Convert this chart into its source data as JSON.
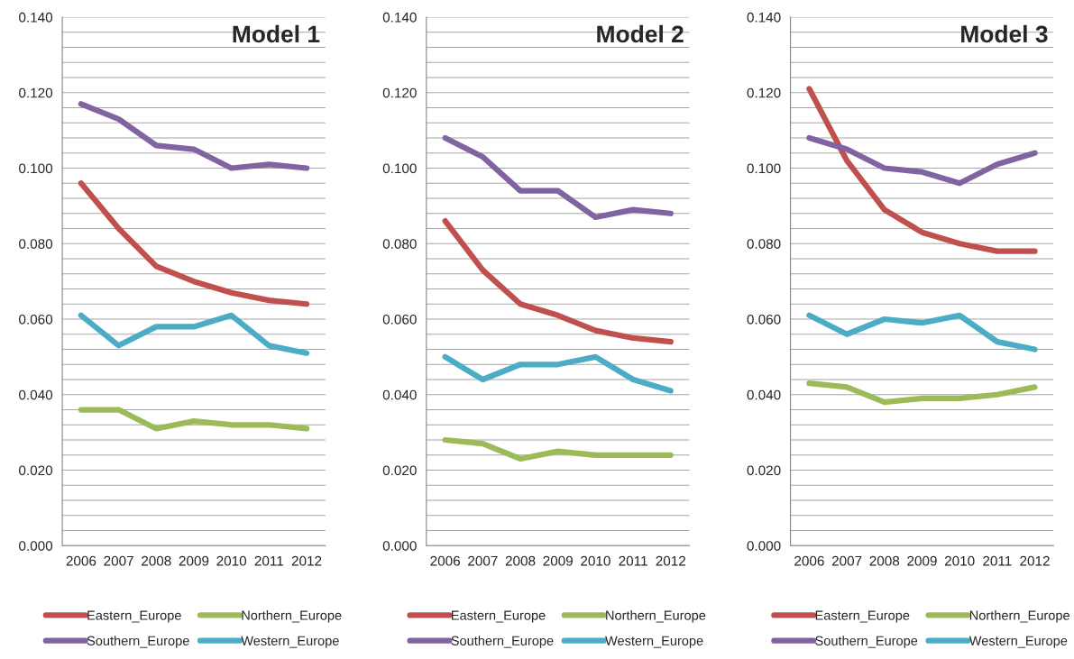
{
  "chart_data": [
    {
      "type": "line",
      "title": "Model 1",
      "categories": [
        "2006",
        "2007",
        "2008",
        "2009",
        "2010",
        "2011",
        "2012"
      ],
      "ylim": [
        0,
        0.14
      ],
      "yticks": [
        {
          "value": 0,
          "label": "0.000"
        },
        {
          "value": 0.004,
          "label": null
        },
        {
          "value": 0.008,
          "label": null
        },
        {
          "value": 0.012,
          "label": null
        },
        {
          "value": 0.016,
          "label": null
        },
        {
          "value": 0.02,
          "label": "0.020"
        },
        {
          "value": 0.024,
          "label": null
        },
        {
          "value": 0.028,
          "label": null
        },
        {
          "value": 0.032,
          "label": null
        },
        {
          "value": 0.036,
          "label": null
        },
        {
          "value": 0.04,
          "label": "0.040"
        },
        {
          "value": 0.044,
          "label": null
        },
        {
          "value": 0.048,
          "label": null
        },
        {
          "value": 0.052,
          "label": null
        },
        {
          "value": 0.056,
          "label": null
        },
        {
          "value": 0.06,
          "label": "0.060"
        },
        {
          "value": 0.064,
          "label": null
        },
        {
          "value": 0.068,
          "label": null
        },
        {
          "value": 0.072,
          "label": null
        },
        {
          "value": 0.076,
          "label": null
        },
        {
          "value": 0.08,
          "label": "0.080"
        },
        {
          "value": 0.084,
          "label": null
        },
        {
          "value": 0.088,
          "label": null
        },
        {
          "value": 0.092,
          "label": null
        },
        {
          "value": 0.096,
          "label": null
        },
        {
          "value": 0.1,
          "label": "0.100"
        },
        {
          "value": 0.104,
          "label": null
        },
        {
          "value": 0.108,
          "label": null
        },
        {
          "value": 0.112,
          "label": null
        },
        {
          "value": 0.116,
          "label": null
        },
        {
          "value": 0.12,
          "label": "0.120"
        },
        {
          "value": 0.124,
          "label": null
        },
        {
          "value": 0.128,
          "label": null
        },
        {
          "value": 0.132,
          "label": null
        },
        {
          "value": 0.136,
          "label": null
        },
        {
          "value": 0.14,
          "label": "0.140"
        }
      ],
      "grid": "y",
      "legend": "bottom",
      "marker": "none",
      "line_style": "solid",
      "series": [
        {
          "name": "Eastern_Europe",
          "color": "#c0504d",
          "values": [
            0.096,
            0.084,
            0.074,
            0.07,
            0.067,
            0.065,
            0.064
          ]
        },
        {
          "name": "Northern_Europe",
          "color": "#9bbb59",
          "values": [
            0.036,
            0.036,
            0.031,
            0.033,
            0.032,
            0.032,
            0.031
          ]
        },
        {
          "name": "Southern_Europe",
          "color": "#8064a2",
          "values": [
            0.117,
            0.113,
            0.106,
            0.105,
            0.1,
            0.101,
            0.1
          ]
        },
        {
          "name": "Western_Europe",
          "color": "#4bacc6",
          "values": [
            0.061,
            0.053,
            0.058,
            0.058,
            0.061,
            0.053,
            0.051
          ]
        }
      ]
    },
    {
      "type": "line",
      "title": "Model 2",
      "categories": [
        "2006",
        "2007",
        "2008",
        "2009",
        "2010",
        "2011",
        "2012"
      ],
      "ylim": [
        0,
        0.14
      ],
      "yticks": [
        {
          "value": 0,
          "label": "0.000"
        },
        {
          "value": 0.004,
          "label": null
        },
        {
          "value": 0.008,
          "label": null
        },
        {
          "value": 0.012,
          "label": null
        },
        {
          "value": 0.016,
          "label": null
        },
        {
          "value": 0.02,
          "label": "0.020"
        },
        {
          "value": 0.024,
          "label": null
        },
        {
          "value": 0.028,
          "label": null
        },
        {
          "value": 0.032,
          "label": null
        },
        {
          "value": 0.036,
          "label": null
        },
        {
          "value": 0.04,
          "label": "0.040"
        },
        {
          "value": 0.044,
          "label": null
        },
        {
          "value": 0.048,
          "label": null
        },
        {
          "value": 0.052,
          "label": null
        },
        {
          "value": 0.056,
          "label": null
        },
        {
          "value": 0.06,
          "label": "0.060"
        },
        {
          "value": 0.064,
          "label": null
        },
        {
          "value": 0.068,
          "label": null
        },
        {
          "value": 0.072,
          "label": null
        },
        {
          "value": 0.076,
          "label": null
        },
        {
          "value": 0.08,
          "label": "0.080"
        },
        {
          "value": 0.084,
          "label": null
        },
        {
          "value": 0.088,
          "label": null
        },
        {
          "value": 0.092,
          "label": null
        },
        {
          "value": 0.096,
          "label": null
        },
        {
          "value": 0.1,
          "label": "0.100"
        },
        {
          "value": 0.104,
          "label": null
        },
        {
          "value": 0.108,
          "label": null
        },
        {
          "value": 0.112,
          "label": null
        },
        {
          "value": 0.116,
          "label": null
        },
        {
          "value": 0.12,
          "label": "0.120"
        },
        {
          "value": 0.124,
          "label": null
        },
        {
          "value": 0.128,
          "label": null
        },
        {
          "value": 0.132,
          "label": null
        },
        {
          "value": 0.136,
          "label": null
        },
        {
          "value": 0.14,
          "label": "0.140"
        }
      ],
      "grid": "y",
      "legend": "bottom",
      "marker": "none",
      "line_style": "solid",
      "series": [
        {
          "name": "Eastern_Europe",
          "color": "#c0504d",
          "values": [
            0.086,
            0.073,
            0.064,
            0.061,
            0.057,
            0.055,
            0.054
          ]
        },
        {
          "name": "Northern_Europe",
          "color": "#9bbb59",
          "values": [
            0.028,
            0.027,
            0.023,
            0.025,
            0.024,
            0.024,
            0.024
          ]
        },
        {
          "name": "Southern_Europe",
          "color": "#8064a2",
          "values": [
            0.108,
            0.103,
            0.094,
            0.094,
            0.087,
            0.089,
            0.088
          ]
        },
        {
          "name": "Western_Europe",
          "color": "#4bacc6",
          "values": [
            0.05,
            0.044,
            0.048,
            0.048,
            0.05,
            0.044,
            0.041
          ]
        }
      ]
    },
    {
      "type": "line",
      "title": "Model 3",
      "categories": [
        "2006",
        "2007",
        "2008",
        "2009",
        "2010",
        "2011",
        "2012"
      ],
      "ylim": [
        0,
        0.14
      ],
      "yticks": [
        {
          "value": 0,
          "label": "0.000"
        },
        {
          "value": 0.004,
          "label": null
        },
        {
          "value": 0.008,
          "label": null
        },
        {
          "value": 0.012,
          "label": null
        },
        {
          "value": 0.016,
          "label": null
        },
        {
          "value": 0.02,
          "label": "0.020"
        },
        {
          "value": 0.024,
          "label": null
        },
        {
          "value": 0.028,
          "label": null
        },
        {
          "value": 0.032,
          "label": null
        },
        {
          "value": 0.036,
          "label": null
        },
        {
          "value": 0.04,
          "label": "0.040"
        },
        {
          "value": 0.044,
          "label": null
        },
        {
          "value": 0.048,
          "label": null
        },
        {
          "value": 0.052,
          "label": null
        },
        {
          "value": 0.056,
          "label": null
        },
        {
          "value": 0.06,
          "label": "0.060"
        },
        {
          "value": 0.064,
          "label": null
        },
        {
          "value": 0.068,
          "label": null
        },
        {
          "value": 0.072,
          "label": null
        },
        {
          "value": 0.076,
          "label": null
        },
        {
          "value": 0.08,
          "label": "0.080"
        },
        {
          "value": 0.084,
          "label": null
        },
        {
          "value": 0.088,
          "label": null
        },
        {
          "value": 0.092,
          "label": null
        },
        {
          "value": 0.096,
          "label": null
        },
        {
          "value": 0.1,
          "label": "0.100"
        },
        {
          "value": 0.104,
          "label": null
        },
        {
          "value": 0.108,
          "label": null
        },
        {
          "value": 0.112,
          "label": null
        },
        {
          "value": 0.116,
          "label": null
        },
        {
          "value": 0.12,
          "label": "0.120"
        },
        {
          "value": 0.124,
          "label": null
        },
        {
          "value": 0.128,
          "label": null
        },
        {
          "value": 0.132,
          "label": null
        },
        {
          "value": 0.136,
          "label": null
        },
        {
          "value": 0.14,
          "label": "0.140"
        }
      ],
      "grid": "y",
      "legend": "bottom",
      "marker": "none",
      "line_style": "solid",
      "series": [
        {
          "name": "Eastern_Europe",
          "color": "#c0504d",
          "values": [
            0.121,
            0.102,
            0.089,
            0.083,
            0.08,
            0.078,
            0.078
          ]
        },
        {
          "name": "Northern_Europe",
          "color": "#9bbb59",
          "values": [
            0.043,
            0.042,
            0.038,
            0.039,
            0.039,
            0.04,
            0.042
          ]
        },
        {
          "name": "Southern_Europe",
          "color": "#8064a2",
          "values": [
            0.108,
            0.105,
            0.1,
            0.099,
            0.096,
            0.101,
            0.104
          ]
        },
        {
          "name": "Western_Europe",
          "color": "#4bacc6",
          "values": [
            0.061,
            0.056,
            0.06,
            0.059,
            0.061,
            0.054,
            0.052
          ]
        }
      ]
    }
  ]
}
